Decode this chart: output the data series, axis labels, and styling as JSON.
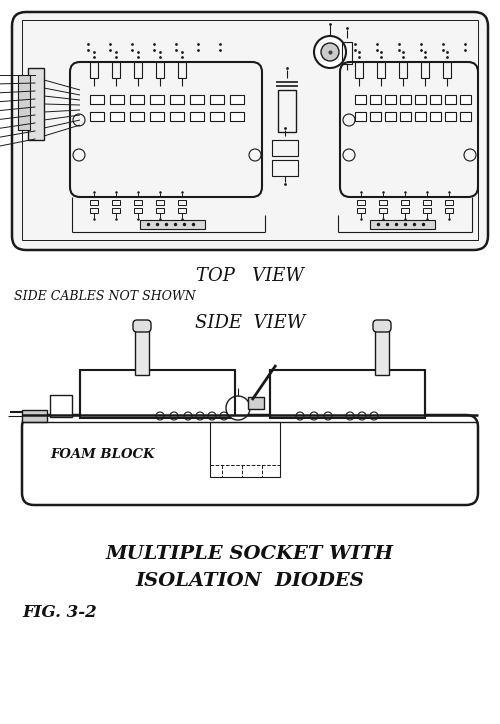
{
  "fig_width": 5.0,
  "fig_height": 7.24,
  "dpi": 100,
  "bg_color": "#ffffff",
  "line_color": "#1a1a1a",
  "text_color": "#111111",
  "title_line1": "MULTIPLE SOCKET WITH",
  "title_line2": "ISOLATION  DIODES",
  "fig_label": "FIG. 3-2",
  "top_view_label": "TOP   VIEW",
  "side_view_label": "SIDE  VIEW",
  "side_cables_label": "SIDE CABLES NOT SHOWN"
}
